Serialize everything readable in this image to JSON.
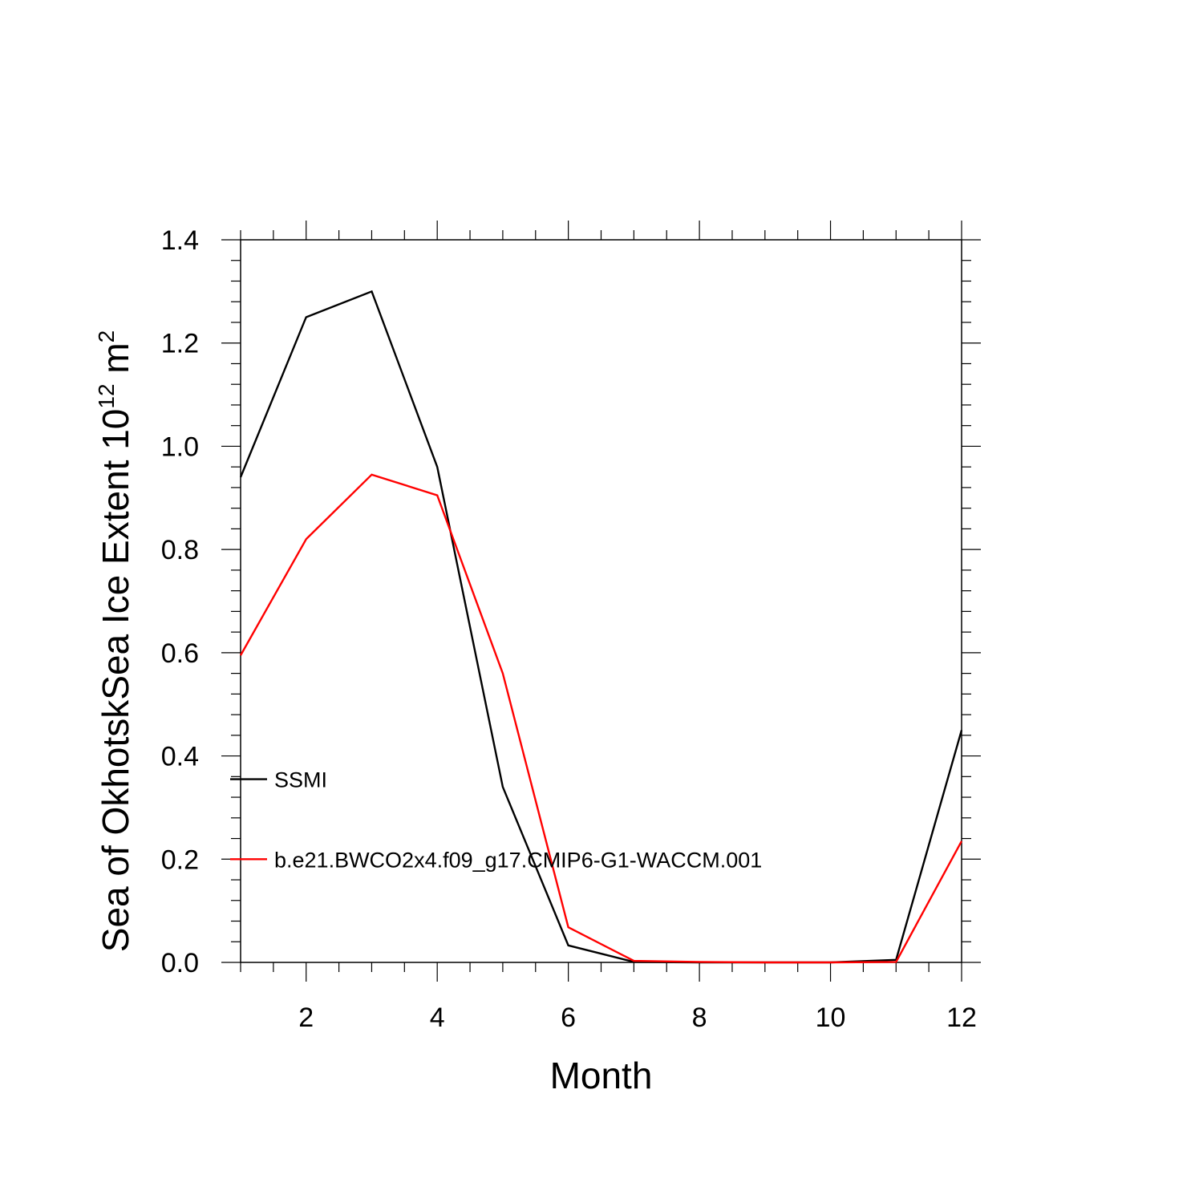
{
  "chart_data": {
    "type": "line",
    "xlabel": "Month",
    "ylabel_main": "Sea of OkhotskSea Ice Extent 10",
    "ylabel_exponent": "12",
    "ylabel_unit": " m",
    "ylabel_unit_exponent": "2",
    "xlim": [
      1,
      12
    ],
    "ylim": [
      0,
      1.4
    ],
    "x_ticks": [
      2,
      4,
      6,
      8,
      10,
      12
    ],
    "x_tick_labels": [
      "2",
      "4",
      "6",
      "8",
      "10",
      "12"
    ],
    "y_ticks": [
      0,
      0.2,
      0.4,
      0.6,
      0.8,
      1.0,
      1.2,
      1.4
    ],
    "y_tick_labels": [
      "0.0",
      "0.2",
      "0.4",
      "0.6",
      "0.8",
      "1.0",
      "1.2",
      "1.4"
    ],
    "grid": false,
    "legend_placement": "left",
    "x": [
      1,
      2,
      3,
      4,
      5,
      6,
      7,
      8,
      9,
      10,
      11,
      12
    ],
    "series": [
      {
        "name": "SSMI",
        "color": "#000000",
        "values": [
          0.94,
          1.25,
          1.3,
          0.96,
          0.34,
          0.033,
          0.001,
          0.0,
          0.0,
          0.0,
          0.005,
          0.45
        ]
      },
      {
        "name": "b.e21.BWCO2x4.f09_g17.CMIP6-G1-WACCM.001",
        "color": "#ff0000",
        "values": [
          0.595,
          0.82,
          0.945,
          0.905,
          0.56,
          0.068,
          0.003,
          0.001,
          0.0,
          0.0,
          0.001,
          0.235
        ]
      }
    ]
  }
}
